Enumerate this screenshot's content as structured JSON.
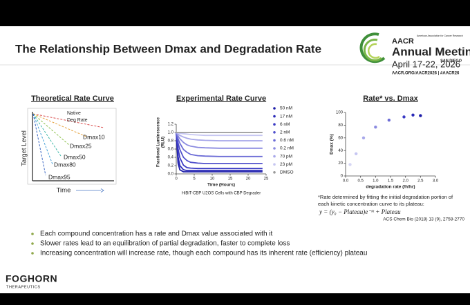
{
  "slide": {
    "title": "The Relationship Between Dmax and Degradation Rate",
    "logo": {
      "org": "AACR",
      "tagline": "American Association for Cancer Research",
      "event": "Annual Meeting",
      "dates": "April 17-22, 2026",
      "city": "SAN DIEGO",
      "links": "AACR.ORG/AACR2026 | #AACR26"
    },
    "footnote": [
      "*Rate determined by fitting the initial degradation portion of",
      "each kinetic concentration curve to its plateau:"
    ],
    "formula": "y = (y₀ − Plateau)e⁻ᵏᵗ + Plateau",
    "citation": "ACS Chem Bio (2018) 13 (9), 2758-2770",
    "bullets": [
      "Each compound concentration has a rate and Dmax value associated with it",
      "Slower rates lead to an equilibration of partial degradation, faster to complete loss",
      "Increasing concentration will increase rate, though each compound has its inherent rate (efficiency) plateau"
    ],
    "company": {
      "name": "FOGHORN",
      "subtitle": "THERAPEUTICS"
    }
  },
  "theory_panel": {
    "title": "Theoretical Rate Curve",
    "native_label": [
      "Native",
      "Deg Rate"
    ],
    "curve_labels": [
      "Dmax10",
      "Dmax25",
      "Dmax50",
      "Dmax80",
      "Dmax95"
    ],
    "y_label": "Target Level",
    "x_label": "Time"
  },
  "chart_data": [
    {
      "type": "line",
      "title": "Experimental Rate Curve",
      "x_label": "Time (Hours)",
      "y_label": [
        "Fractional  Luminescence",
        "(RLU)"
      ],
      "caption": "HiBiT-CBP U2OS Cells with CBP Degrader",
      "x": [
        0,
        0.5,
        1,
        2,
        3,
        4,
        6,
        8,
        12,
        16,
        20,
        24
      ],
      "xlim": [
        0,
        25
      ],
      "xticks": [
        0,
        5,
        10,
        15,
        20,
        25
      ],
      "ylim": [
        0,
        1.2
      ],
      "yticks": [
        {
          "value": 0,
          "label": "0.0"
        },
        0.2,
        0.4,
        0.6,
        0.8,
        {
          "value": 1,
          "label": "1.0"
        },
        1.2
      ],
      "series": [
        {
          "name": "50 nM",
          "color": "#1c1ca8",
          "values": [
            1.0,
            0.26,
            0.1,
            0.05,
            0.05,
            0.05,
            0.05,
            0.05,
            0.05,
            0.05,
            0.05,
            0.05
          ]
        },
        {
          "name": "17 nM",
          "color": "#2a2ab8",
          "values": [
            1.0,
            0.42,
            0.2,
            0.1,
            0.08,
            0.08,
            0.08,
            0.08,
            0.08,
            0.08,
            0.08,
            0.08
          ]
        },
        {
          "name": "6 nM",
          "color": "#3a3ac4",
          "values": [
            1.0,
            0.61,
            0.39,
            0.21,
            0.15,
            0.14,
            0.13,
            0.13,
            0.13,
            0.13,
            0.13,
            0.13
          ]
        },
        {
          "name": "2 nM",
          "color": "#5050cc",
          "values": [
            1.0,
            0.75,
            0.59,
            0.4,
            0.32,
            0.28,
            0.26,
            0.25,
            0.25,
            0.25,
            0.25,
            0.25
          ]
        },
        {
          "name": "0.6 nM",
          "color": "#6c6cd6",
          "values": [
            1.0,
            0.85,
            0.74,
            0.59,
            0.52,
            0.47,
            0.44,
            0.43,
            0.42,
            0.42,
            0.42,
            0.42
          ]
        },
        {
          "name": "0.2 nM",
          "color": "#8a8ae0",
          "values": [
            1.0,
            0.92,
            0.85,
            0.76,
            0.7,
            0.67,
            0.64,
            0.63,
            0.62,
            0.62,
            0.62,
            0.62
          ]
        },
        {
          "name": "70 pM",
          "color": "#a8a8ea",
          "values": [
            1.0,
            0.96,
            0.93,
            0.89,
            0.86,
            0.84,
            0.82,
            0.81,
            0.8,
            0.8,
            0.8,
            0.8
          ]
        },
        {
          "name": "23 pM",
          "color": "#c6c6f2",
          "values": [
            1.0,
            0.99,
            0.98,
            0.97,
            0.96,
            0.95,
            0.94,
            0.93,
            0.93,
            0.93,
            0.93,
            0.93
          ]
        },
        {
          "name": "DMSO",
          "color": "#9a9a9a",
          "values": [
            1.0,
            1.0,
            1.0,
            1.0,
            1.0,
            1.0,
            1.0,
            1.0,
            1.0,
            1.0,
            1.0,
            1.0
          ]
        }
      ]
    },
    {
      "type": "scatter",
      "title": "Rate* vs. Dmax",
      "x_label": "degradation rate (/h/hr)",
      "y_label": "Dmax (%)",
      "x": [
        0.15,
        0.35,
        0.6,
        1.0,
        1.45,
        1.95,
        2.25,
        2.5
      ],
      "values": [
        18,
        35,
        60,
        77,
        88,
        93,
        96,
        95
      ],
      "colors": [
        "#d6d6f4",
        "#c6c6f2",
        "#a8a8ea",
        "#8a8ae0",
        "#6c6cd6",
        "#3a3ac4",
        "#2a2ab8",
        "#1c1ca8"
      ],
      "xlim": [
        0,
        3
      ],
      "xticks": [
        {
          "value": 0,
          "label": "0.0"
        },
        0.5,
        {
          "value": 1,
          "label": "1.0"
        },
        1.5,
        {
          "value": 2,
          "label": "2.0"
        },
        2.5,
        {
          "value": 3,
          "label": "3.0"
        }
      ],
      "ylim": [
        0,
        100
      ],
      "yticks": [
        0,
        20,
        40,
        60,
        80,
        100
      ]
    }
  ]
}
